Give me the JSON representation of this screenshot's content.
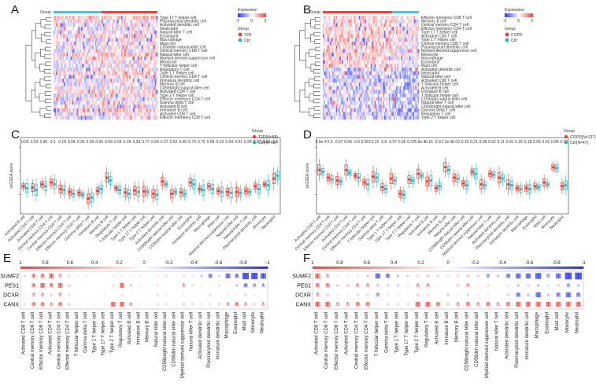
{
  "panels": [
    "A",
    "B",
    "C",
    "D",
    "E",
    "F"
  ],
  "heatmapA": {
    "group_label": "Group",
    "legend_title": "Expression",
    "legend_ticks": [
      "-2",
      "0",
      "2"
    ],
    "group_legend_title": "Group",
    "groups": [
      "T2D",
      "Ctrl"
    ],
    "rows": [
      "Type 17 T helper cell",
      "Plasmacytoid dendritic cell",
      "Activated dendritic cell",
      "Neutrophil",
      "Natural killer T cell",
      "Eosinophil",
      "Macrophage",
      "Mast cell",
      "CD56dim natural killer cell",
      "Central memory CD8 T cell",
      "Natural killer cell",
      "Myeloid derived suppressor cell",
      "Monocyte",
      "T follicular helper cell",
      "Regulatory T cell",
      "Type 1 T helper cell",
      "Central memory CD4 T cell",
      "Immature dendritic cell",
      "Memory B cell",
      "CD56bright natural killer cell",
      "Activated CD4 T cell",
      "Type 2 T helper cell",
      "Effector memeory CD4 T cell",
      "Gamma delta T cell",
      "Activated B cell",
      "Immature B cell",
      "Activated CD8 T cell",
      "Effector memeory CD8 T cell"
    ]
  },
  "heatmapB": {
    "group_label": "Group",
    "legend_title": "Expression",
    "legend_ticks": [
      "-2",
      "0",
      "2"
    ],
    "group_legend_title": "Group",
    "groups": [
      "COPD",
      "Ctrl"
    ],
    "rows": [
      "Effector memeory CD8 T cell",
      "Memory B cell",
      "Central memory CD4 T cell",
      "Effector memeory CD4 T cell",
      "Type 17 T helper cell",
      "Activated CD4 T cell",
      "Type 1 T helper cell",
      "Central memory CD8 T cell",
      "Plasmacytoid dendritic cell",
      "Myeloid derived suppressor cell",
      "Monocyte",
      "Macrophage",
      "Eosinophil",
      "Mast cell",
      "Activated dendritic cell",
      "Neutrophil",
      "Natural killer cell",
      "Activated CD8 T cell",
      "T follicular helper cell",
      "Activated B cell",
      "Immature B cell",
      "T follicular helper cell",
      "CD56dim natural killer cell",
      "Natural killer T cell",
      "CD56bright natural killer cell",
      "Gamma delta T cell",
      "Regulatory T cell",
      "Type 2 T helper cell"
    ]
  },
  "chart_data": [
    {
      "type": "box",
      "panel": "C",
      "legend_title": "Group",
      "series": [
        {
          "name": "T2D(N=58)",
          "color": "#e8443a"
        },
        {
          "name": "Ctrl(N=66)",
          "color": "#3bb3c3"
        }
      ],
      "ylabel": "ssGSEA score",
      "pvalues": [
        "0.55",
        "0.03",
        "0.40",
        "0.1",
        "0.18",
        "0.04",
        "0.39",
        "0.09",
        "0.09",
        "0.09",
        "0.04",
        "0.26",
        "0.33",
        "0.77",
        "0.04",
        "0.27",
        "0.52",
        "0.06",
        "0.79",
        "0.79",
        "0.69",
        "0.03",
        "0.04",
        "0.41",
        "0.28",
        "0.57",
        "0.97",
        "0.6"
      ],
      "categories": [
        "Activated B cell",
        "Activated CD4 T cell",
        "Activated CD8 T cell",
        "Central memory CD4 T cell",
        "Central memory CD8 T cell",
        "Effector memory CD4 T cell",
        "Effector memory CD8 T cell",
        "Gamma delta T cell",
        "Immature B cell",
        "Memory B cell",
        "Regulatory T cell",
        "T follicular helper cell",
        "Type 1 T helper cell",
        "Type 17 T helper cell",
        "Type 2 T helper cell",
        "Activated dendritic cell",
        "CD56bright natural killer cell",
        "CD56dim natural killer cell",
        "Eosinophil",
        "Immature dendritic cell",
        "Macrophage",
        "Mast cell",
        "Myeloid derived suppressor cell",
        "Natural killer cell",
        "Natural killer T cell",
        "Plasmacytoid dendritic cell",
        "Monocyte",
        "Neutrophil"
      ],
      "medians_a": [
        0.18,
        0.15,
        0.22,
        0.26,
        0.12,
        0.06,
        0.04,
        -0.08,
        0.08,
        0.36,
        0.14,
        0.05,
        0.09,
        0.07,
        0.02,
        0.28,
        0.02,
        0.05,
        0.26,
        0.12,
        0.18,
        0.08,
        0.06,
        0.06,
        0.08,
        0.18,
        0.22,
        0.34
      ],
      "medians_b": [
        0.14,
        0.1,
        0.18,
        0.22,
        0.1,
        0.02,
        0.0,
        -0.06,
        0.12,
        0.3,
        0.1,
        0.02,
        0.06,
        0.06,
        0.0,
        0.22,
        0.06,
        0.02,
        0.22,
        0.1,
        0.12,
        0.06,
        0.04,
        0.04,
        0.06,
        0.12,
        0.2,
        0.4
      ]
    },
    {
      "type": "box",
      "panel": "D",
      "legend_title": "Group",
      "series": [
        {
          "name": "COPD(N=137)",
          "color": "#e8443a"
        },
        {
          "name": "Ctrl(N=47)",
          "color": "#3bb3c3"
        }
      ],
      "ylabel": "ssGSEA score",
      "pvalues": [
        "5.9e-4",
        "0.2",
        "0.37",
        "0.09",
        "0.9",
        "0.001",
        "0.15",
        "0.8",
        "0.97",
        "0.36",
        "0.37",
        "6.9e-4",
        "0.16",
        "0.9",
        "2.2e-5",
        "0.03",
        "0.16",
        "0.21",
        "0.08",
        "0.53",
        "0.11",
        "0.41",
        "0.25",
        "0.18",
        "0.06",
        "0.01",
        "0.09",
        "0.03"
      ],
      "categories": [
        "Activated CD8 T cell",
        "Central memory CD8 T cell",
        "Effector memory CD8 T cell",
        "Activated CD4 T cell",
        "Central memory CD4 T cell",
        "Effector memory CD4 T cell",
        "T follicular helper cell",
        "Gamma delta T cell",
        "Type 1 T helper cell",
        "Type 17 T helper cell",
        "Type 2 T helper cell",
        "Regulatory T cell",
        "Activated B cell",
        "Immature B cell",
        "Memory B cell",
        "Natural killer cell",
        "CD56bright natural killer cell",
        "CD56dim natural killer cell",
        "Myeloid derived suppressor cell",
        "Natural killer T cell",
        "Activated dendritic cell",
        "Plasmacytoid dendritic cell",
        "Immature dendritic cell",
        "Macrophage",
        "Eosinophil",
        "Mast cell",
        "Monocyte",
        "Neutrophil"
      ],
      "medians_a": [
        0.52,
        0.36,
        0.3,
        0.52,
        0.4,
        0.26,
        0.38,
        0.16,
        0.34,
        0.02,
        0.32,
        0.44,
        0.28,
        0.14,
        0.58,
        0.36,
        0.24,
        0.48,
        0.22,
        0.44,
        0.36,
        0.22,
        0.14,
        0.14,
        0.18,
        0.26,
        0.58,
        0.18
      ],
      "medians_b": [
        0.48,
        0.32,
        0.28,
        0.46,
        0.36,
        0.22,
        0.36,
        0.12,
        0.3,
        0.0,
        0.3,
        0.4,
        0.3,
        0.18,
        0.52,
        0.34,
        0.2,
        0.44,
        0.2,
        0.42,
        0.34,
        0.2,
        0.12,
        0.12,
        0.16,
        0.22,
        0.56,
        0.2
      ]
    }
  ],
  "corrE": {
    "scale_ticks": [
      "1",
      "0.8",
      "0.6",
      "0.4",
      "0.2",
      "0",
      "-0.2",
      "-0.4",
      "-0.6",
      "-0.8",
      "-1"
    ],
    "genes": [
      "SUMF2",
      "PES1",
      "DCXR",
      "CANX"
    ],
    "cells": [
      "Activated CD8 T cell",
      "Central memory CD8 T cell",
      "Effector memory CD8 T cell",
      "Activated CD4 T cell",
      "Central memory CD4 T cell",
      "Effector memory CD4 T cell",
      "T follicular helper cell",
      "Gamma delta T cell",
      "Type 1 T helper cell",
      "Type 17 T helper cell",
      "Type 2 T helper cell",
      "Regulatory T cell",
      "Activated B cell",
      "Immature B cell",
      "Memory B cell",
      "Natural killer cell",
      "CD56bright natural killer cell",
      "CD56dim natural killer cell",
      "Myeloid derived suppressor cell",
      "Natural killer T cell",
      "Activated dendritic cell",
      "Plasmacytoid dendritic cell",
      "Immature dendritic cell",
      "Macrophage",
      "Eosinophil",
      "Mast cell",
      "Monocyte",
      "Neutrophil"
    ],
    "values": [
      [
        -0.2,
        0.5,
        0.5,
        0.6,
        0.4,
        0.2,
        0.1,
        0.1,
        0.0,
        0.0,
        -0.1,
        -0.1,
        0.1,
        0.1,
        0.0,
        0.1,
        0.2,
        0.0,
        0.2,
        -0.1,
        -0.3,
        -0.5,
        -0.2,
        -0.6,
        -0.5,
        -0.8,
        -0.8,
        -0.7
      ],
      [
        0.0,
        0.5,
        0.6,
        0.5,
        0.6,
        0.3,
        0.0,
        0.0,
        0.0,
        0.0,
        0.2,
        0.6,
        0.3,
        0.1,
        0.0,
        0.2,
        0.0,
        0.0,
        0.4,
        0.2,
        0.1,
        0.0,
        0.2,
        0.0,
        -0.3,
        -0.5,
        -0.4,
        -0.4
      ],
      [
        0.1,
        0.4,
        0.4,
        0.3,
        0.4,
        0.2,
        0.0,
        0.0,
        0.0,
        0.1,
        0.0,
        0.2,
        0.1,
        0.0,
        0.0,
        0.2,
        0.1,
        0.0,
        0.1,
        0.0,
        0.0,
        0.2,
        0.0,
        0.1,
        0.1,
        -0.2,
        -0.1,
        0.0
      ],
      [
        0.2,
        0.5,
        0.5,
        0.4,
        0.5,
        0.3,
        0.1,
        0.1,
        0.1,
        0.1,
        0.6,
        0.6,
        0.4,
        0.1,
        0.1,
        0.2,
        0.2,
        0.1,
        0.3,
        0.2,
        0.1,
        0.2,
        0.3,
        0.4,
        0.5,
        0.4,
        0.3,
        0.4
      ]
    ]
  },
  "corrF": {
    "scale_ticks": [
      "1",
      "0.8",
      "0.6",
      "0.4",
      "0.2",
      "0",
      "-0.2",
      "-0.4",
      "-0.6",
      "-0.8",
      "-1"
    ],
    "genes": [
      "SUMF2",
      "PES1",
      "DCXR",
      "CANX"
    ],
    "cells": [
      "Activated CD8 T cell",
      "Central memory CD8 T cell",
      "Effector memory CD8 T cell",
      "Activated CD4 T cell",
      "Central memory CD4 T cell",
      "Effector memory CD4 T cell",
      "T follicular helper cell",
      "Gamma delta T cell",
      "Type 1 T helper cell",
      "Type 17 T helper cell",
      "Type 2 T helper cell",
      "Regulatory T cell",
      "Activated B cell",
      "Immature B cell",
      "Memory B cell",
      "CD56bright natural killer cell",
      "CD56dim natural killer cell",
      "Myeloid derived suppressor cell",
      "Natural killer T cell",
      "Activated dendritic cell",
      "Plasmacytoid dendritic cell",
      "Immature dendritic cell",
      "Macrophage",
      "Eosinophil",
      "Mast cell",
      "Monocyte",
      "Neutrophil"
    ],
    "values": [
      [
        0.6,
        0.4,
        -0.1,
        0.1,
        0.1,
        0.3,
        -0.6,
        -0.5,
        -0.3,
        -0.2,
        0.2,
        0.3,
        -0.2,
        -0.1,
        0.2,
        0.3,
        -0.2,
        -0.4,
        -0.3,
        -0.5,
        -0.6,
        -0.6,
        -0.7,
        -0.4,
        -0.6,
        -0.8,
        -0.8
      ],
      [
        0.5,
        0.5,
        0.3,
        0.3,
        0.4,
        0.4,
        -0.3,
        -0.2,
        -0.2,
        -0.1,
        0.4,
        0.4,
        0.1,
        0.0,
        0.3,
        0.4,
        0.1,
        0.2,
        0.0,
        -0.1,
        -0.3,
        -0.2,
        -0.3,
        -0.1,
        -0.2,
        -0.4,
        -0.3
      ],
      [
        0.4,
        0.3,
        0.1,
        0.1,
        0.2,
        0.2,
        -0.4,
        -0.1,
        -0.1,
        0.0,
        0.3,
        0.2,
        0.0,
        -0.2,
        0.1,
        0.3,
        0.1,
        0.1,
        0.0,
        -0.2,
        -0.5,
        -0.3,
        -0.6,
        -0.3,
        -0.5,
        -0.6,
        -0.5
      ],
      [
        0.6,
        0.6,
        0.4,
        0.4,
        0.5,
        0.5,
        0.1,
        0.2,
        0.2,
        0.2,
        0.6,
        0.6,
        0.5,
        0.3,
        0.4,
        0.5,
        0.4,
        0.5,
        0.4,
        0.5,
        0.6,
        0.6,
        0.6,
        0.6,
        0.6,
        0.6,
        0.6
      ]
    ]
  }
}
